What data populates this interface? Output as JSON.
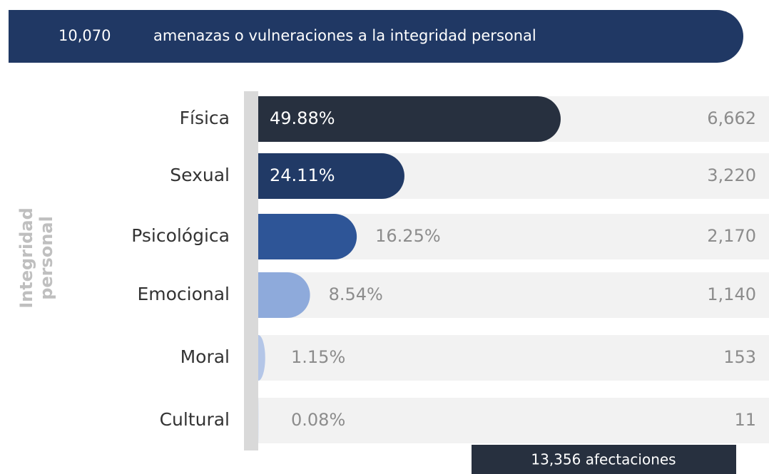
{
  "chart_data": {
    "type": "hbar",
    "header": {
      "count": "10,070",
      "text": "amenazas o vulneraciones a la integridad personal"
    },
    "y_label": [
      "Integridad",
      "personal"
    ],
    "categories": [
      "Física",
      "Sexual",
      "Psicológica",
      "Emocional",
      "Moral",
      "Cultural"
    ],
    "values": [
      49.88,
      24.11,
      16.25,
      8.54,
      1.15,
      0.08
    ],
    "value_labels": [
      "49.88%",
      "24.11%",
      "16.25%",
      "8.54%",
      "1.15%",
      "0.08%"
    ],
    "counts": [
      "6,662",
      "3,220",
      "2,170",
      "1,140",
      "153",
      "11"
    ],
    "colors": [
      "#27303f",
      "#213a66",
      "#2e5597",
      "#8eaadb",
      "#b4c6e7",
      "#dae3f3"
    ],
    "footer": "13,356 afectaciones"
  }
}
